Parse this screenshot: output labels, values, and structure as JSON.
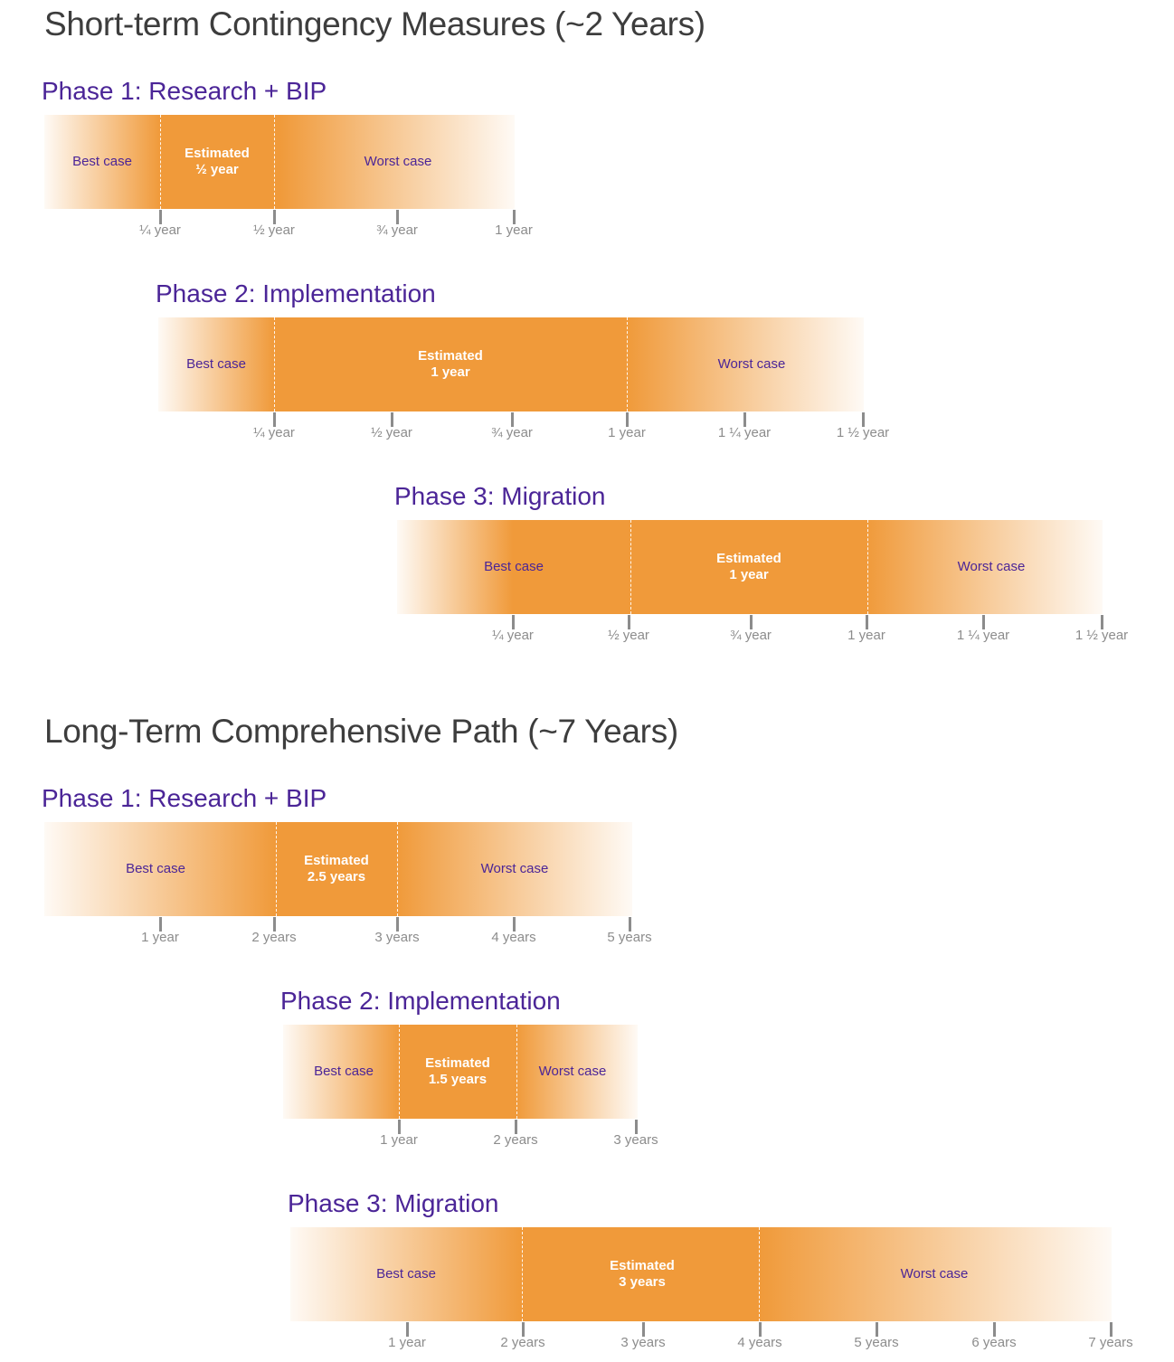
{
  "sections": [
    {
      "title": "Short-term Contingency Measures (~2 Years)",
      "phases": [
        {
          "title": "Phase 1: Research + BIP",
          "best_label": "Best case",
          "estimated_label": "Estimated",
          "estimated_value": "½ year",
          "worst_label": "Worst case",
          "tick_labels": [
            "¼ year",
            "½ year",
            "¾ year",
            "1 year"
          ],
          "estimate_range_years": [
            0.25,
            0.5
          ]
        },
        {
          "title": "Phase 2: Implementation",
          "best_label": "Best case",
          "estimated_label": "Estimated",
          "estimated_value": "1 year",
          "worst_label": "Worst case",
          "tick_labels": [
            "¼ year",
            "½ year",
            "¾ year",
            "1 year",
            "1 ¼ year",
            "1 ½ year"
          ],
          "estimate_range_years": [
            0.25,
            1
          ]
        },
        {
          "title": "Phase 3: Migration",
          "best_label": "Best case",
          "estimated_label": "Estimated",
          "estimated_value": "1 year",
          "worst_label": "Worst case",
          "tick_labels": [
            "¼ year",
            "½ year",
            "¾ year",
            "1 year",
            "1 ¼ year",
            "1 ½ year"
          ],
          "estimate_range_years": [
            0.5,
            1
          ]
        }
      ]
    },
    {
      "title": "Long-Term Comprehensive Path (~7 Years)",
      "phases": [
        {
          "title": "Phase 1: Research + BIP",
          "best_label": "Best case",
          "estimated_label": "Estimated",
          "estimated_value": "2.5 years",
          "worst_label": "Worst case",
          "tick_labels": [
            "1 year",
            "2 years",
            "3 years",
            "4 years",
            "5 years"
          ],
          "estimate_range_years": [
            2,
            3
          ]
        },
        {
          "title": "Phase 2: Implementation",
          "best_label": "Best case",
          "estimated_label": "Estimated",
          "estimated_value": "1.5 years",
          "worst_label": "Worst case",
          "tick_labels": [
            "1 year",
            "2 years",
            "3 years"
          ],
          "estimate_range_years": [
            1,
            2
          ]
        },
        {
          "title": "Phase 3: Migration",
          "best_label": "Best case",
          "estimated_label": "Estimated",
          "estimated_value": "3 years",
          "worst_label": "Worst case",
          "tick_labels": [
            "1 year",
            "2 years",
            "3 years",
            "4 years",
            "5 years",
            "6 years",
            "7 years"
          ],
          "estimate_range_years": [
            2,
            4
          ]
        }
      ]
    }
  ],
  "colors": {
    "bar": "#f09a3a",
    "phase_title": "#4b2597",
    "section_title": "#3d3d3d",
    "tick": "#8c8c8c"
  }
}
